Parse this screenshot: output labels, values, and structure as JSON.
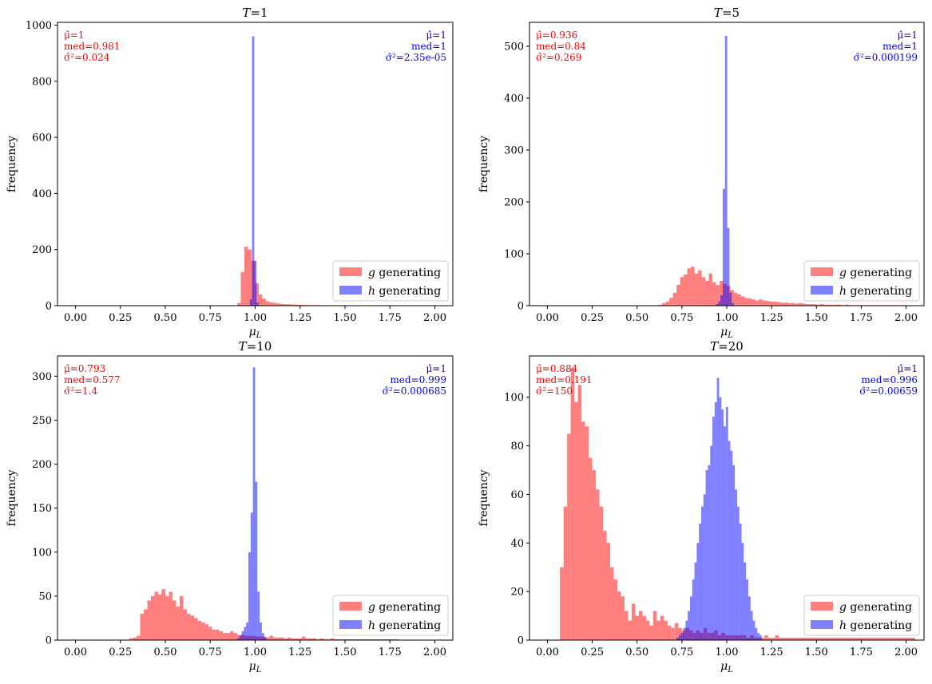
{
  "chart_data": [
    {
      "type": "histogram",
      "title": "T=1",
      "xlabel": "μ_L",
      "ylabel": "frequency",
      "xlim": [
        -0.1,
        2.1
      ],
      "ylim": [
        0,
        1010
      ],
      "xticks": [
        "0.00",
        "0.25",
        "0.50",
        "0.75",
        "1.00",
        "1.25",
        "1.50",
        "1.75",
        "2.00"
      ],
      "yticks": [
        0,
        200,
        400,
        600,
        800,
        1000
      ],
      "legend": "lower-right",
      "stats": {
        "g": [
          "μ̂=1",
          "med=0.981",
          "σ̂²=0.024"
        ],
        "h": [
          "μ̂=1",
          "med=1",
          "σ̂²=2.35e-05"
        ]
      },
      "series": [
        {
          "name": "g generating",
          "color": "#ff0000",
          "opacity": 0.5,
          "bin_start": 0.9,
          "bin_width": 0.02,
          "values": [
            10,
            120,
            210,
            200,
            160,
            80,
            40,
            25,
            15,
            12,
            10,
            8,
            6,
            5,
            5,
            4,
            4,
            3,
            3,
            2,
            2,
            2,
            2,
            1,
            1,
            1,
            1,
            1,
            1,
            1,
            1,
            1,
            1,
            1,
            1,
            1,
            1,
            1
          ]
        },
        {
          "name": "h generating",
          "color": "#0000ff",
          "opacity": 0.5,
          "bin_start": 0.97,
          "bin_width": 0.0125,
          "values": [
            22,
            960,
            160,
            10
          ]
        }
      ]
    },
    {
      "type": "histogram",
      "title": "T=5",
      "xlabel": "μ_L",
      "ylabel": "frequency",
      "xlim": [
        -0.1,
        2.1
      ],
      "ylim": [
        0,
        546
      ],
      "xticks": [
        "0.00",
        "0.25",
        "0.50",
        "0.75",
        "1.00",
        "1.25",
        "1.50",
        "1.75",
        "2.00"
      ],
      "yticks": [
        0,
        100,
        200,
        300,
        400,
        500
      ],
      "legend": "lower-right",
      "stats": {
        "g": [
          "μ̂=0.936",
          "med=0.84",
          "σ̂²=0.269"
        ],
        "h": [
          "μ̂=1",
          "med=1",
          "σ̂²=0.000199"
        ]
      },
      "series": [
        {
          "name": "g generating",
          "color": "#ff0000",
          "opacity": 0.5,
          "bin_start": 0.62,
          "bin_width": 0.02,
          "values": [
            2,
            5,
            8,
            15,
            25,
            40,
            55,
            60,
            72,
            75,
            62,
            68,
            55,
            48,
            62,
            45,
            40,
            48,
            42,
            38,
            30,
            25,
            22,
            18,
            15,
            14,
            12,
            10,
            12,
            10,
            9,
            8,
            8,
            7,
            6,
            6,
            5,
            5,
            4,
            5,
            4,
            3,
            3,
            3,
            2,
            3,
            2,
            2,
            2,
            2,
            2,
            1,
            2,
            1,
            1,
            1,
            1,
            1,
            1,
            1,
            1,
            1,
            1,
            1,
            1,
            1,
            1,
            1,
            1,
            1
          ]
        },
        {
          "name": "h generating",
          "color": "#0000ff",
          "opacity": 0.5,
          "bin_start": 0.94,
          "bin_width": 0.0125,
          "values": [
            3,
            8,
            20,
            225,
            520,
            150,
            25,
            5
          ]
        }
      ]
    },
    {
      "type": "histogram",
      "title": "T=10",
      "xlabel": "μ_L",
      "ylabel": "frequency",
      "xlim": [
        -0.1,
        2.1
      ],
      "ylim": [
        0,
        323
      ],
      "xticks": [
        "0.00",
        "0.25",
        "0.50",
        "0.75",
        "1.00",
        "1.25",
        "1.50",
        "1.75",
        "2.00"
      ],
      "yticks": [
        0,
        50,
        100,
        150,
        200,
        250,
        300
      ],
      "legend": "lower-right",
      "stats": {
        "g": [
          "μ̂=0.793",
          "med=0.577",
          "σ̂²=1.4"
        ],
        "h": [
          "μ̂=1",
          "med=0.999",
          "σ̂²=0.000685"
        ]
      },
      "series": [
        {
          "name": "g generating",
          "color": "#ff0000",
          "opacity": 0.5,
          "bin_start": 0.3,
          "bin_width": 0.02,
          "values": [
            2,
            3,
            5,
            30,
            35,
            45,
            50,
            55,
            52,
            58,
            50,
            55,
            45,
            38,
            50,
            35,
            30,
            28,
            25,
            22,
            20,
            18,
            15,
            12,
            12,
            10,
            8,
            8,
            10,
            8,
            6,
            6,
            5,
            5,
            5,
            4,
            4,
            4,
            3,
            5,
            3,
            3,
            3,
            2,
            3,
            2,
            2,
            2,
            4,
            2,
            2,
            2,
            1,
            2,
            1,
            1,
            2,
            1,
            1,
            1,
            1,
            1,
            1,
            1,
            1,
            1,
            1,
            1,
            1,
            1,
            1,
            1,
            1,
            1,
            1
          ]
        },
        {
          "name": "h generating",
          "color": "#0000ff",
          "opacity": 0.5,
          "bin_start": 0.9,
          "bin_width": 0.0125,
          "values": [
            2,
            5,
            10,
            15,
            20,
            100,
            145,
            310,
            180,
            55,
            20,
            8,
            3
          ]
        }
      ]
    },
    {
      "type": "histogram",
      "title": "T=20",
      "xlabel": "μ_L",
      "ylabel": "frequency",
      "xlim": [
        -0.1,
        2.1
      ],
      "ylim": [
        0,
        117
      ],
      "xticks": [
        "0.00",
        "0.25",
        "0.50",
        "0.75",
        "1.00",
        "1.25",
        "1.50",
        "1.75",
        "2.00"
      ],
      "yticks": [
        0,
        20,
        40,
        60,
        80,
        100
      ],
      "legend": "lower-right",
      "stats": {
        "g": [
          "μ̂=0.884",
          "med=0.191",
          "σ̂²=150"
        ],
        "h": [
          "μ̂=1",
          "med=0.996",
          "σ̂²=0.00659"
        ]
      },
      "series": [
        {
          "name": "g generating",
          "color": "#ff0000",
          "opacity": 0.5,
          "bin_start": 0.07,
          "bin_width": 0.02,
          "values": [
            30,
            55,
            85,
            112,
            98,
            105,
            90,
            88,
            75,
            70,
            62,
            55,
            45,
            40,
            30,
            25,
            20,
            18,
            12,
            8,
            15,
            10,
            12,
            10,
            8,
            6,
            12,
            8,
            10,
            8,
            6,
            5,
            7,
            5,
            4,
            5,
            4,
            3,
            4,
            3,
            5,
            3,
            3,
            4,
            2,
            3,
            2,
            2,
            2,
            2,
            2,
            2,
            1,
            2,
            1,
            1,
            1,
            2,
            1,
            1,
            2,
            1,
            1,
            1,
            1,
            1,
            1,
            1,
            1,
            1,
            1,
            1,
            1,
            1,
            1,
            1,
            1,
            1,
            1,
            1,
            1,
            1,
            1,
            1,
            1,
            1,
            1,
            1,
            1,
            1,
            1,
            1,
            1,
            1,
            1,
            1,
            1,
            1,
            1
          ]
        },
        {
          "name": "h generating",
          "color": "#0000ff",
          "opacity": 0.5,
          "bin_start": 0.72,
          "bin_width": 0.0125,
          "values": [
            1,
            2,
            3,
            5,
            8,
            12,
            18,
            25,
            32,
            40,
            48,
            55,
            60,
            70,
            72,
            80,
            92,
            98,
            108,
            100,
            95,
            88,
            96,
            82,
            78,
            72,
            62,
            55,
            48,
            40,
            32,
            25,
            18,
            12,
            8,
            5,
            3,
            2
          ]
        }
      ]
    }
  ]
}
